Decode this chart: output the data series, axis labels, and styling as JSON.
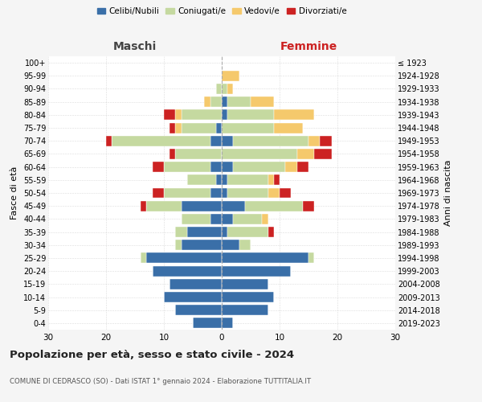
{
  "age_groups": [
    "0-4",
    "5-9",
    "10-14",
    "15-19",
    "20-24",
    "25-29",
    "30-34",
    "35-39",
    "40-44",
    "45-49",
    "50-54",
    "55-59",
    "60-64",
    "65-69",
    "70-74",
    "75-79",
    "80-84",
    "85-89",
    "90-94",
    "95-99",
    "100+"
  ],
  "birth_years": [
    "2019-2023",
    "2014-2018",
    "2009-2013",
    "2004-2008",
    "1999-2003",
    "1994-1998",
    "1989-1993",
    "1984-1988",
    "1979-1983",
    "1974-1978",
    "1969-1973",
    "1964-1968",
    "1959-1963",
    "1954-1958",
    "1949-1953",
    "1944-1948",
    "1939-1943",
    "1934-1938",
    "1929-1933",
    "1924-1928",
    "≤ 1923"
  ],
  "colors": {
    "celibi": "#3a6fa8",
    "coniugati": "#c5d9a0",
    "vedovi": "#f5c96c",
    "divorziati": "#cc2222"
  },
  "males": {
    "celibi": [
      5,
      8,
      10,
      9,
      12,
      13,
      7,
      6,
      2,
      7,
      2,
      1,
      2,
      0,
      2,
      1,
      0,
      0,
      0,
      0,
      0
    ],
    "coniugati": [
      0,
      0,
      0,
      0,
      0,
      1,
      1,
      2,
      5,
      6,
      8,
      5,
      8,
      8,
      17,
      6,
      7,
      2,
      1,
      0,
      0
    ],
    "vedovi": [
      0,
      0,
      0,
      0,
      0,
      0,
      0,
      0,
      0,
      0,
      0,
      0,
      0,
      0,
      0,
      1,
      1,
      1,
      0,
      0,
      0
    ],
    "divorziati": [
      0,
      0,
      0,
      0,
      0,
      0,
      0,
      0,
      0,
      1,
      2,
      0,
      2,
      1,
      1,
      1,
      2,
      0,
      0,
      0,
      0
    ]
  },
  "females": {
    "celibi": [
      2,
      8,
      9,
      8,
      12,
      15,
      3,
      1,
      2,
      4,
      1,
      1,
      2,
      0,
      2,
      0,
      1,
      1,
      0,
      0,
      0
    ],
    "coniugati": [
      0,
      0,
      0,
      0,
      0,
      1,
      2,
      7,
      5,
      10,
      7,
      7,
      9,
      13,
      13,
      9,
      8,
      4,
      1,
      0,
      0
    ],
    "vedovi": [
      0,
      0,
      0,
      0,
      0,
      0,
      0,
      0,
      1,
      0,
      2,
      1,
      2,
      3,
      2,
      5,
      7,
      4,
      1,
      3,
      0
    ],
    "divorziati": [
      0,
      0,
      0,
      0,
      0,
      0,
      0,
      1,
      0,
      2,
      2,
      1,
      2,
      3,
      2,
      0,
      0,
      0,
      0,
      0,
      0
    ]
  },
  "title": "Popolazione per età, sesso e stato civile - 2024",
  "subtitle": "COMUNE DI CEDRASCO (SO) - Dati ISTAT 1° gennaio 2024 - Elaborazione TUTTITALIA.IT",
  "xlabel_left": "Maschi",
  "xlabel_right": "Femmine",
  "ylabel_left": "Fasce di età",
  "ylabel_right": "Anni di nascita",
  "xlim": 30,
  "legend_labels": [
    "Celibi/Nubili",
    "Coniugati/e",
    "Vedovi/e",
    "Divorziati/e"
  ],
  "bg_color": "#f5f5f5",
  "plot_bg": "#ffffff",
  "header_color_left": "#444444",
  "header_color_right": "#444444"
}
